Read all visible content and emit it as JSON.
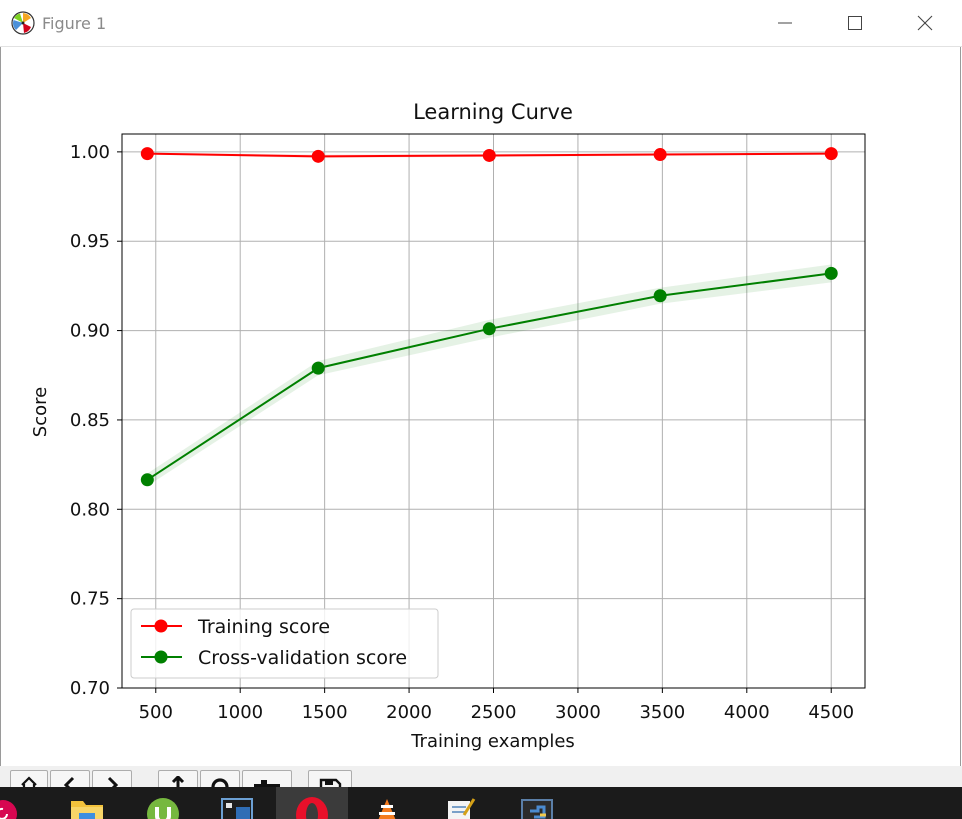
{
  "window": {
    "title": "Figure 1",
    "app_icon": "matplotlib-icon",
    "controls": [
      "minimize-icon",
      "maximize-icon",
      "close-icon"
    ]
  },
  "chart_data": {
    "type": "line",
    "title": "Learning Curve",
    "xlabel": "Training examples",
    "ylabel": "Score",
    "xlim": [
      300,
      4700
    ],
    "ylim": [
      0.7,
      1.01
    ],
    "xticks": [
      500,
      1000,
      1500,
      2000,
      2500,
      3000,
      3500,
      4000,
      4500
    ],
    "yticks": [
      0.7,
      0.75,
      0.8,
      0.85,
      0.9,
      0.95,
      1.0
    ],
    "ytick_labels": [
      "0.70",
      "0.75",
      "0.80",
      "0.85",
      "0.90",
      "0.95",
      "1.00"
    ],
    "grid": true,
    "legend_position": "lower-left",
    "x": [
      450,
      1462,
      2475,
      3487,
      4500
    ],
    "series": [
      {
        "name": "Training score",
        "color": "#ff0000",
        "values": [
          0.999,
          0.9975,
          0.998,
          0.9985,
          0.999
        ],
        "band": [
          [
            0.9985,
            0.9995
          ],
          [
            0.9965,
            0.9985
          ],
          [
            0.9972,
            0.9988
          ],
          [
            0.9978,
            0.9992
          ],
          [
            0.9985,
            0.9995
          ]
        ]
      },
      {
        "name": "Cross-validation score",
        "color": "#008000",
        "values": [
          0.8165,
          0.879,
          0.901,
          0.9195,
          0.932
        ],
        "band": [
          [
            0.813,
            0.82
          ],
          [
            0.875,
            0.883
          ],
          [
            0.896,
            0.906
          ],
          [
            0.915,
            0.924
          ],
          [
            0.927,
            0.937
          ]
        ]
      }
    ]
  },
  "toolbar": {
    "icons": [
      "home-icon",
      "back-icon",
      "forward-icon",
      "pan-icon",
      "zoom-icon",
      "configure-icon",
      "save-icon"
    ]
  },
  "taskbar": {
    "icons": [
      "debian-icon",
      "file-explorer-icon",
      "utorrent-icon",
      "terminal-icon",
      "opera-icon",
      "vlc-icon",
      "notepad-icon",
      "python-icon"
    ],
    "active": "opera-icon"
  }
}
